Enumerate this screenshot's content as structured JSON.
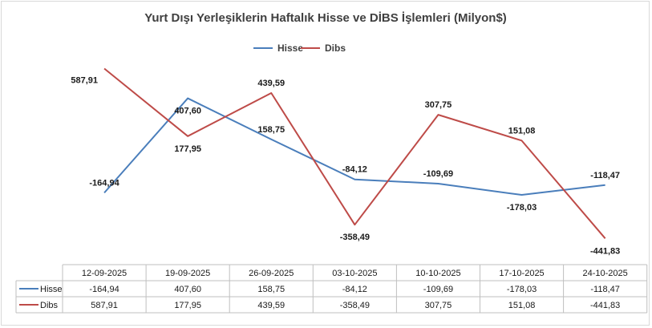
{
  "chart_data": {
    "type": "line",
    "title": "Yurt Dışı Yerleşiklerin Haftalık Hisse ve DİBS İşlemleri (Milyon$)",
    "categories": [
      "12-09-2025",
      "19-09-2025",
      "26-09-2025",
      "03-10-2025",
      "10-10-2025",
      "17-10-2025",
      "24-10-2025"
    ],
    "series": [
      {
        "name": "Hisse",
        "color": "#4a7ebb",
        "values": [
          -164.94,
          407.6,
          158.75,
          -84.12,
          -109.69,
          -178.03,
          -118.47
        ],
        "labels": [
          "-164,94",
          "407,60",
          "158,75",
          "-84,12",
          "-109,69",
          "-178,03",
          "-118,47"
        ],
        "label_pos": [
          "above",
          "below",
          "above",
          "above",
          "above",
          "below",
          "above"
        ]
      },
      {
        "name": "Dibs",
        "color": "#be4b48",
        "values": [
          587.91,
          177.95,
          439.59,
          -358.49,
          307.75,
          151.08,
          -441.83
        ],
        "labels": [
          "587,91",
          "177,95",
          "439,59",
          "-358,49",
          "307,75",
          "151,08",
          "-441,83"
        ],
        "label_pos": [
          "left",
          "below",
          "above",
          "below",
          "above",
          "above",
          "below"
        ]
      }
    ],
    "ylim": [
      -450,
      600
    ],
    "legend": "top",
    "grid": false,
    "data_table": true
  }
}
